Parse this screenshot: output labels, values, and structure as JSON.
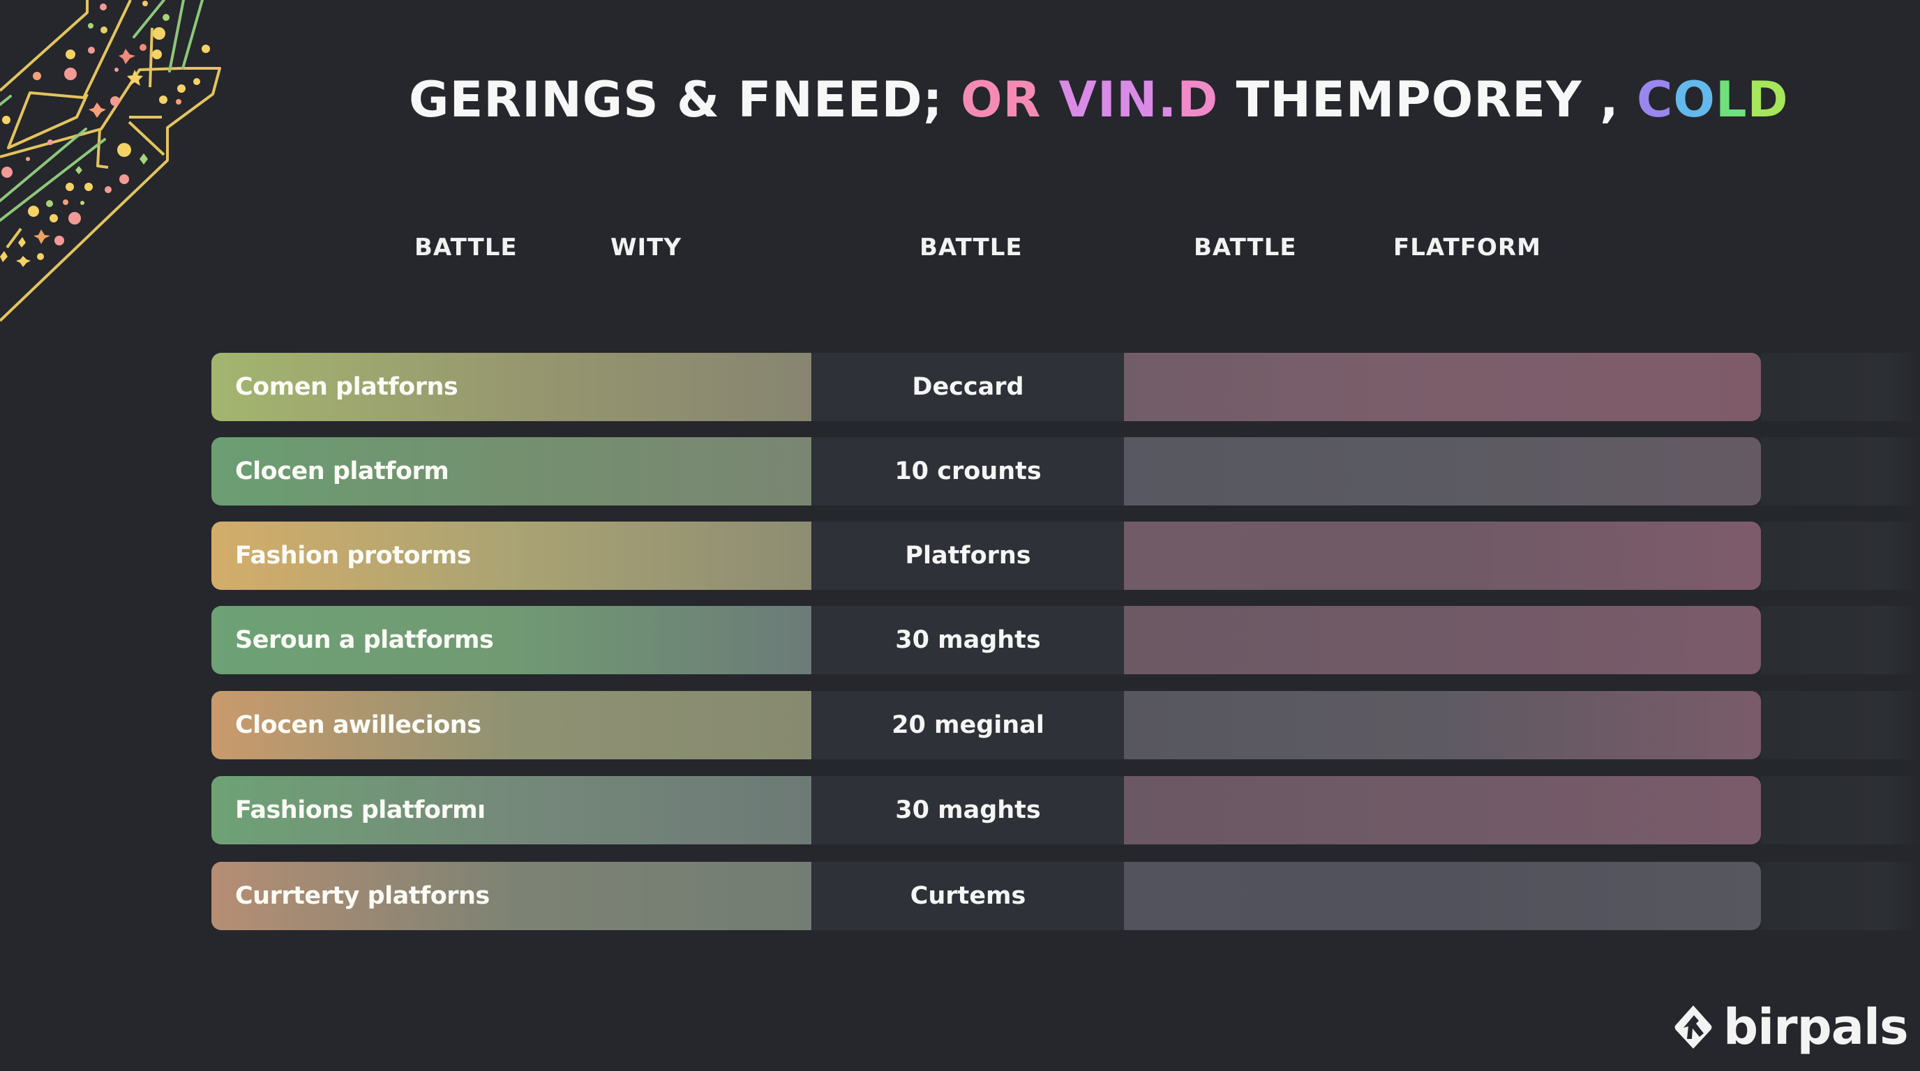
{
  "title": {
    "segments": [
      {
        "text": "GERINGS & FNEED;",
        "color": "#f7f7f7"
      },
      {
        "text": "OR",
        "color": "#f58bb4"
      },
      {
        "text": "VIN.",
        "color": "#d98be6"
      },
      {
        "text": "D",
        "color": "#f08ac8"
      },
      {
        "text": "THEMPOREY ,",
        "color": "#f7f7f7"
      },
      {
        "text": "C",
        "color": "#9a86ee"
      },
      {
        "text": "O",
        "color": "#63b9ec"
      },
      {
        "text": "L",
        "color": "#6fe07c"
      },
      {
        "text": "D",
        "color": "#a6e65a"
      }
    ]
  },
  "headers": [
    "BATTLE",
    "WITY",
    "BATTLE",
    "BATTLE",
    "FLATFORM"
  ],
  "rows": [
    {
      "label": "Comen platforns",
      "value": "Deccard",
      "left_gradient": [
        "#a3b56f",
        "#97986f",
        "#878570"
      ],
      "right_gradient": [
        "#715d68",
        "#7c5e6b",
        "#7f5b6a"
      ]
    },
    {
      "label": "Clocen platform",
      "value": "10 crounts",
      "left_gradient": [
        "#6b9e73",
        "#74906f",
        "#7a8672"
      ],
      "right_gradient": [
        "#575861",
        "#5b5a62",
        "#655a64"
      ]
    },
    {
      "label": "Fashion protorms",
      "value": "Platforns",
      "left_gradient": [
        "#d3ad6a",
        "#aaa373",
        "#8d8d73"
      ],
      "right_gradient": [
        "#705b66",
        "#6f5a66",
        "#7e5b6a"
      ]
    },
    {
      "label": "Seroun a platforms",
      "value": "30 maghts",
      "left_gradient": [
        "#6ea175",
        "#719a73",
        "#6c7b78"
      ],
      "right_gradient": [
        "#6b5964",
        "#715a67",
        "#7b5b6a"
      ]
    },
    {
      "label": "Clocen awillecions",
      "value": "20 meginal",
      "left_gradient": [
        "#c99a6c",
        "#8f9272",
        "#878a70"
      ],
      "right_gradient": [
        "#57575f",
        "#5e5a63",
        "#7a5b69"
      ]
    },
    {
      "label": "Fashions platformı",
      "value": "30 maghts",
      "left_gradient": [
        "#6ea275",
        "#75897a",
        "#6d7a76"
      ],
      "right_gradient": [
        "#6a5864",
        "#705a67",
        "#7a5b6a"
      ]
    },
    {
      "label": "Currterty platforns",
      "value": "Curtems",
      "left_gradient": [
        "#b68e74",
        "#7d8374",
        "#737d73"
      ],
      "right_gradient": [
        "#53535d",
        "#52525c",
        "#57575f"
      ]
    }
  ],
  "logo": {
    "text": "birpals",
    "icon": "diamond-bird-icon"
  }
}
